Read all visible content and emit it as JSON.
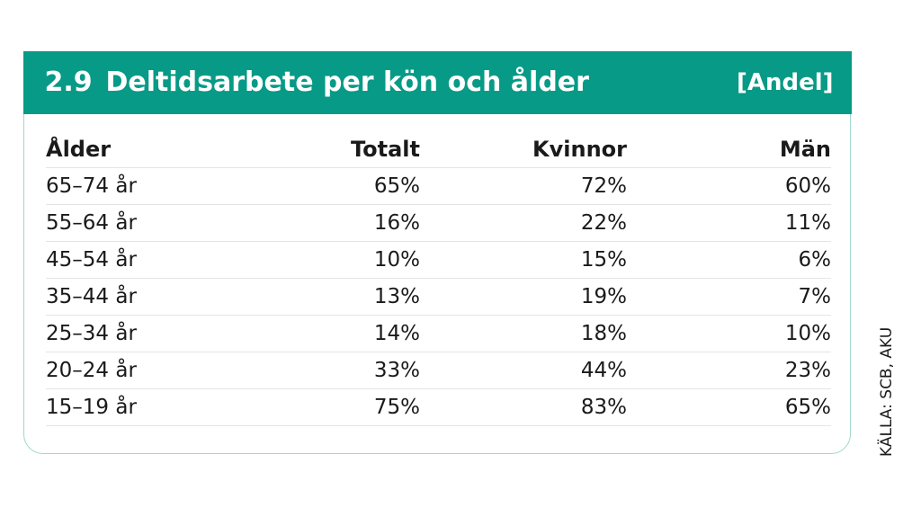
{
  "header": {
    "number": "2.9",
    "title": "Deltidsarbete per kön och ålder",
    "unit": "[Andel]",
    "color": "#079a86"
  },
  "source": "KÄLLA: SCB, AKU",
  "chart_data": {
    "type": "table",
    "columns": [
      "Ålder",
      "Totalt",
      "Kvinnor",
      "Män"
    ],
    "rows": [
      [
        "65–74 år",
        "65%",
        "72%",
        "60%"
      ],
      [
        "55–64 år",
        "16%",
        "22%",
        "11%"
      ],
      [
        "45–54 år",
        "10%",
        "15%",
        "6%"
      ],
      [
        "35–44 år",
        "13%",
        "19%",
        "7%"
      ],
      [
        "25–34 år",
        "14%",
        "18%",
        "10%"
      ],
      [
        "20–24 år",
        "33%",
        "44%",
        "23%"
      ],
      [
        "15–19 år",
        "75%",
        "83%",
        "65%"
      ]
    ]
  }
}
